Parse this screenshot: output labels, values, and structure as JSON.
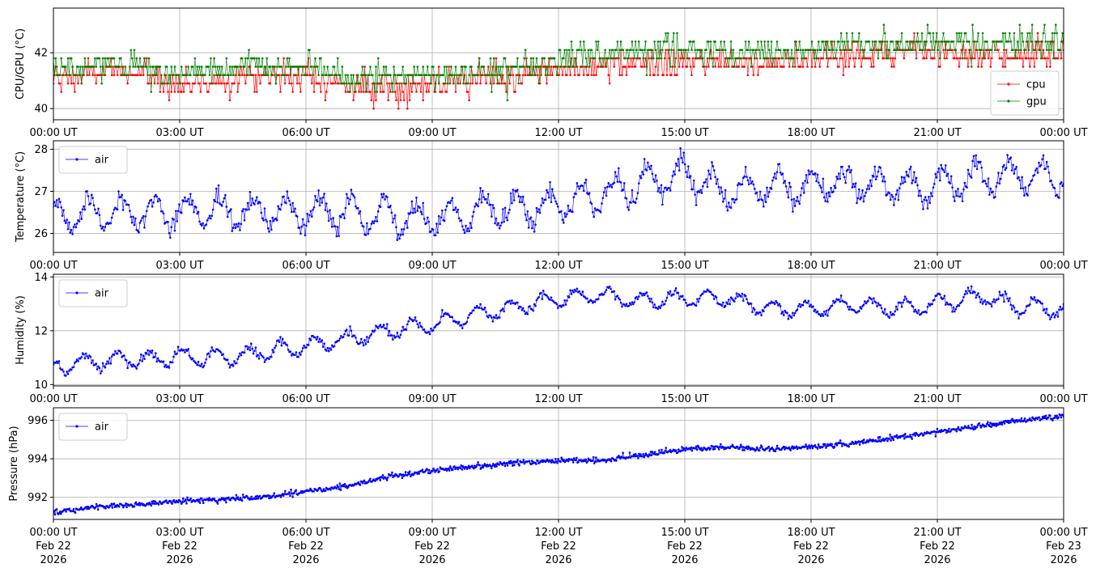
{
  "chart_data": [
    {
      "type": "line",
      "ylabel": "CPU/GPU (°C)",
      "ylim": [
        39.6,
        43.6
      ],
      "yticks": [
        "40",
        "42"
      ],
      "yticks_values": [
        40,
        42
      ],
      "xticks": [
        "00:00 UT",
        "03:00 UT",
        "06:00 UT",
        "09:00 UT",
        "12:00 UT",
        "15:00 UT",
        "18:00 UT",
        "21:00 UT",
        "00:00 UT"
      ],
      "grid": true,
      "legend_position": "lower-right",
      "series": [
        {
          "name": "cpu",
          "color": "#ff0000",
          "x": [
            0,
            1,
            2,
            3,
            4,
            5,
            6,
            7,
            8,
            9,
            10,
            11,
            12,
            13,
            14,
            15,
            16,
            17,
            18,
            19,
            20,
            21,
            22,
            23,
            24
          ],
          "values": [
            41.0,
            41.3,
            41.3,
            40.9,
            41.0,
            41.2,
            41.2,
            40.8,
            40.8,
            40.8,
            41.0,
            41.2,
            41.4,
            41.5,
            41.6,
            41.7,
            41.7,
            41.7,
            41.8,
            41.9,
            42.0,
            42.1,
            42.0,
            41.9,
            42.0
          ]
        },
        {
          "name": "gpu",
          "color": "#008000",
          "x": [
            0,
            1,
            2,
            3,
            4,
            5,
            6,
            7,
            8,
            9,
            10,
            11,
            12,
            13,
            14,
            15,
            16,
            17,
            18,
            19,
            20,
            21,
            22,
            23,
            24
          ],
          "values": [
            41.4,
            41.5,
            41.6,
            41.2,
            41.4,
            41.5,
            41.5,
            41.1,
            41.1,
            41.2,
            41.3,
            41.5,
            41.7,
            41.9,
            42.1,
            42.1,
            42.0,
            42.0,
            42.1,
            42.2,
            42.3,
            42.4,
            42.3,
            42.3,
            42.3
          ]
        }
      ]
    },
    {
      "type": "line",
      "ylabel": "Temperature (°C)",
      "ylim": [
        25.55,
        28.2
      ],
      "yticks": [
        "26",
        "27",
        "28"
      ],
      "yticks_values": [
        26,
        27,
        28
      ],
      "xticks": [
        "00:00 UT",
        "03:00 UT",
        "06:00 UT",
        "09:00 UT",
        "12:00 UT",
        "15:00 UT",
        "18:00 UT",
        "21:00 UT",
        "00:00 UT"
      ],
      "grid": true,
      "legend_position": "upper-left",
      "series": [
        {
          "name": "air",
          "color": "#0000ff",
          "x": [
            0,
            1,
            2,
            3,
            4,
            5,
            6,
            7,
            8,
            9,
            10,
            11,
            12,
            13,
            14,
            15,
            16,
            17,
            18,
            19,
            20,
            21,
            22,
            23,
            24
          ],
          "values": [
            26.4,
            26.5,
            26.5,
            26.5,
            26.5,
            26.5,
            26.5,
            26.5,
            26.4,
            26.4,
            26.5,
            26.6,
            26.7,
            26.9,
            27.2,
            27.4,
            27.0,
            27.1,
            27.1,
            27.2,
            27.1,
            27.1,
            27.3,
            27.4,
            27.3
          ]
        }
      ]
    },
    {
      "type": "line",
      "ylabel": "Humidity (%)",
      "ylim": [
        9.95,
        14.1
      ],
      "yticks": [
        "10",
        "12",
        "14"
      ],
      "yticks_values": [
        10,
        12,
        14
      ],
      "xticks": [
        "00:00 UT",
        "03:00 UT",
        "06:00 UT",
        "09:00 UT",
        "12:00 UT",
        "15:00 UT",
        "18:00 UT",
        "21:00 UT",
        "00:00 UT"
      ],
      "grid": true,
      "legend_position": "upper-left",
      "series": [
        {
          "name": "air",
          "color": "#0000ff",
          "x": [
            0,
            1,
            2,
            3,
            4,
            5,
            6,
            7,
            8,
            9,
            10,
            11,
            12,
            13,
            14,
            15,
            16,
            17,
            18,
            19,
            20,
            21,
            22,
            23,
            24
          ],
          "values": [
            10.6,
            10.9,
            10.9,
            11.0,
            11.0,
            11.2,
            11.4,
            11.7,
            12.0,
            12.2,
            12.6,
            12.9,
            13.2,
            13.3,
            13.1,
            13.2,
            13.2,
            12.8,
            12.8,
            13.0,
            12.8,
            13.0,
            13.3,
            12.9,
            12.8
          ]
        }
      ]
    },
    {
      "type": "line",
      "ylabel": "Pressure (hPa)",
      "ylim": [
        990.85,
        996.65
      ],
      "yticks": [
        "992",
        "994",
        "996"
      ],
      "yticks_values": [
        992,
        994,
        996
      ],
      "xticks": [
        "00:00 UT\nFeb 22\n2026",
        "03:00 UT\nFeb 22\n2026",
        "06:00 UT\nFeb 22\n2026",
        "09:00 UT\nFeb 22\n2026",
        "12:00 UT\nFeb 22\n2026",
        "15:00 UT\nFeb 22\n2026",
        "18:00 UT\nFeb 22\n2026",
        "21:00 UT\nFeb 22\n2026",
        "00:00 UT\nFeb 23\n2026"
      ],
      "grid": true,
      "legend_position": "upper-left",
      "series": [
        {
          "name": "air",
          "color": "#0000ff",
          "x": [
            0,
            1,
            2,
            3,
            4,
            5,
            6,
            7,
            8,
            9,
            10,
            11,
            12,
            13,
            14,
            15,
            16,
            17,
            18,
            19,
            20,
            21,
            22,
            23,
            24
          ],
          "values": [
            991.2,
            991.5,
            991.6,
            991.8,
            991.9,
            992.0,
            992.3,
            992.6,
            993.1,
            993.4,
            993.6,
            993.8,
            993.9,
            993.9,
            994.2,
            994.5,
            994.6,
            994.5,
            994.6,
            994.8,
            995.1,
            995.4,
            995.7,
            996.0,
            996.2
          ]
        }
      ]
    }
  ]
}
